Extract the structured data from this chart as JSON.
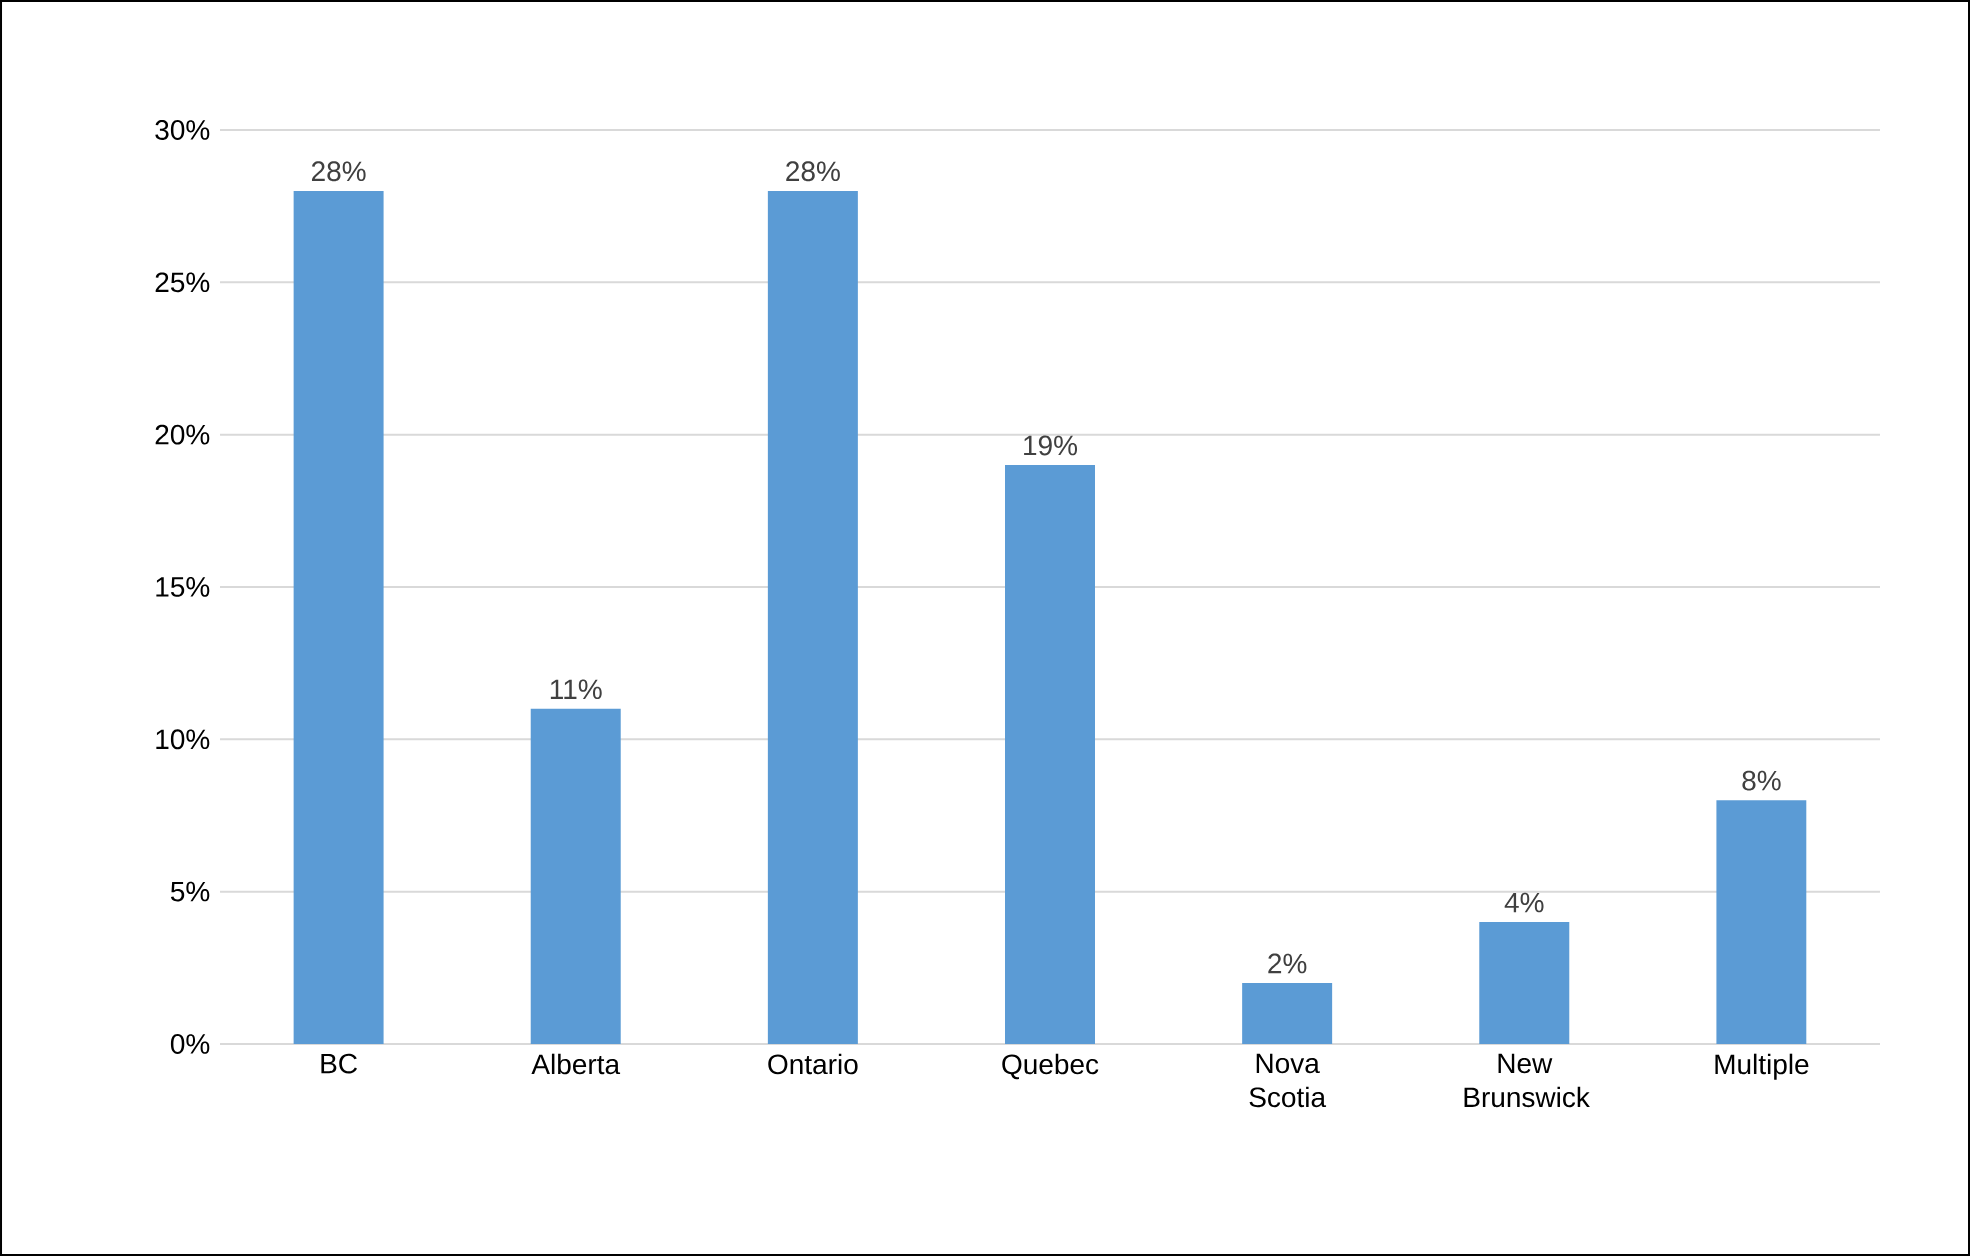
{
  "chart_data": {
    "type": "bar",
    "categories": [
      "BC",
      "Alberta",
      "Ontario",
      "Quebec",
      "Nova Scotia",
      "New Brunswick",
      "Multiple"
    ],
    "values": [
      28,
      11,
      28,
      19,
      2,
      4,
      8
    ],
    "value_labels": [
      "28%",
      "11%",
      "28%",
      "19%",
      "2%",
      "4%",
      "8%"
    ],
    "color": "#5b9bd5",
    "ylim": [
      0,
      30
    ],
    "yticks": [
      {
        "value": 0,
        "label": "0%"
      },
      {
        "value": 5,
        "label": "5%"
      },
      {
        "value": 10,
        "label": "10%"
      },
      {
        "value": 15,
        "label": "15%"
      },
      {
        "value": 20,
        "label": "20%"
      },
      {
        "value": 25,
        "label": "25%"
      },
      {
        "value": 30,
        "label": "30%"
      }
    ],
    "grid": "y"
  }
}
